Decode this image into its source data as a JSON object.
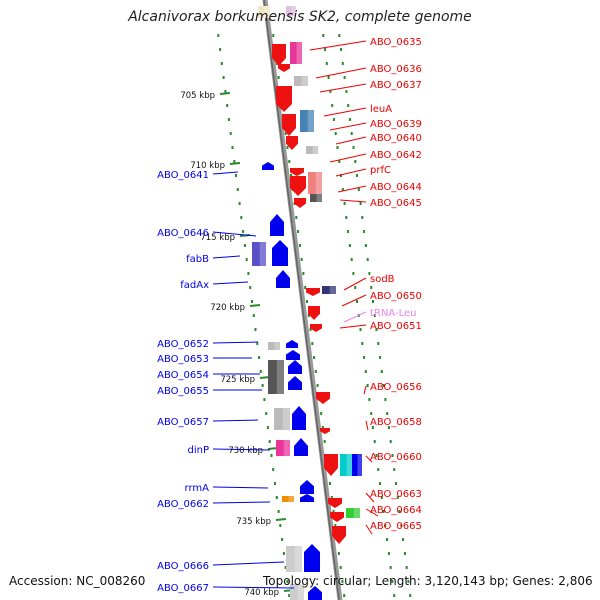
{
  "title": "Alcanivorax borkumensis SK2, complete genome",
  "footer": {
    "accession": "Accession: NC_008260",
    "summary": "Topology: circular; Length: 3,120,143 bp; Genes: 2,806"
  },
  "colors": {
    "backbone": "#888888",
    "ticks": "#2a8a2a",
    "forward_gene": "#0000ee",
    "reverse_gene": "#ee0000",
    "trna": "#ee82ee"
  },
  "ruler": [
    {
      "label": "705 kbp"
    },
    {
      "label": "710 kbp"
    },
    {
      "label": "715 kbp"
    },
    {
      "label": "720 kbp"
    },
    {
      "label": "725 kbp"
    },
    {
      "label": "730 kbp"
    },
    {
      "label": "735 kbp"
    },
    {
      "label": "740 kbp"
    }
  ],
  "left_labels": [
    {
      "text": "ABO_0641"
    },
    {
      "text": "ABO_0646"
    },
    {
      "text": "fabB"
    },
    {
      "text": "fadAx"
    },
    {
      "text": "ABO_0652"
    },
    {
      "text": "ABO_0653"
    },
    {
      "text": "ABO_0654"
    },
    {
      "text": "ABO_0655"
    },
    {
      "text": "ABO_0657"
    },
    {
      "text": "dinP"
    },
    {
      "text": "rrmA"
    },
    {
      "text": "ABO_0662"
    },
    {
      "text": "ABO_0666"
    },
    {
      "text": "ABO_0667"
    }
  ],
  "right_labels": [
    {
      "text": "ABO_0635",
      "kind": "gene"
    },
    {
      "text": "ABO_0636",
      "kind": "gene"
    },
    {
      "text": "ABO_0637",
      "kind": "gene"
    },
    {
      "text": "leuA",
      "kind": "gene"
    },
    {
      "text": "ABO_0639",
      "kind": "gene"
    },
    {
      "text": "ABO_0640",
      "kind": "gene"
    },
    {
      "text": "ABO_0642",
      "kind": "gene"
    },
    {
      "text": "prfC",
      "kind": "gene"
    },
    {
      "text": "ABO_0644",
      "kind": "gene"
    },
    {
      "text": "ABO_0645",
      "kind": "gene"
    },
    {
      "text": "sodB",
      "kind": "gene"
    },
    {
      "text": "ABO_0650",
      "kind": "gene"
    },
    {
      "text": "tRNA-Leu",
      "kind": "trna"
    },
    {
      "text": "ABO_0651",
      "kind": "gene"
    },
    {
      "text": "ABO_0656",
      "kind": "gene"
    },
    {
      "text": "ABO_0658",
      "kind": "gene"
    },
    {
      "text": "ABO_0660",
      "kind": "gene"
    },
    {
      "text": "ABO_0663",
      "kind": "gene"
    },
    {
      "text": "ABO_0664",
      "kind": "gene"
    },
    {
      "text": "ABO_0665",
      "kind": "gene"
    }
  ]
}
